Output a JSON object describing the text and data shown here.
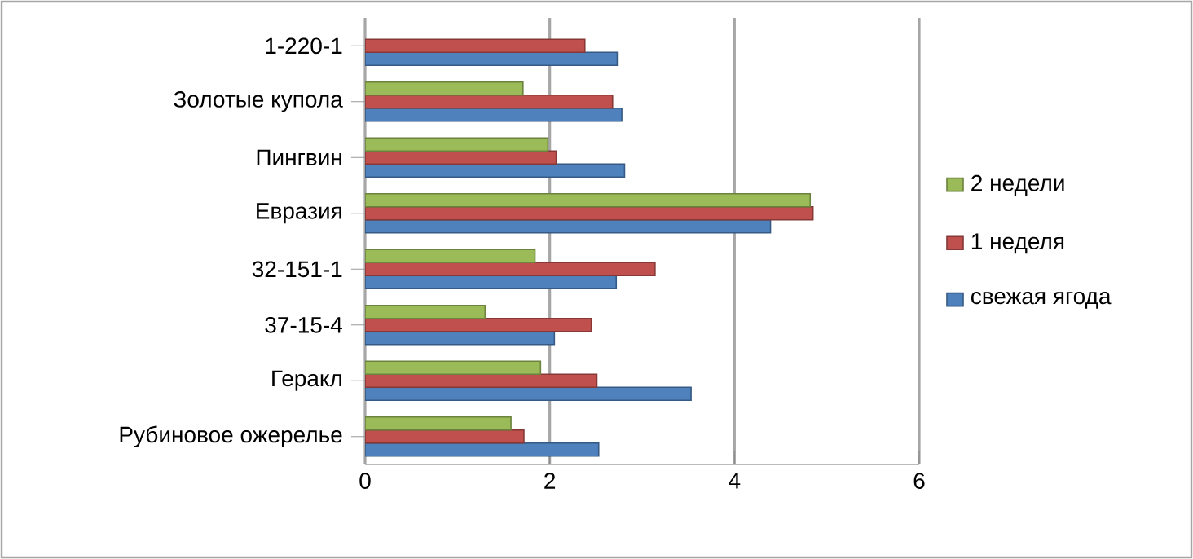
{
  "chart_data": {
    "type": "bar",
    "orientation": "horizontal",
    "categories": [
      "1-220-1",
      "Золотые купола",
      "Пингвин",
      "Евразия",
      "32-151-1",
      "37-15-4",
      "Геракл",
      "Рубиновое ожерелье"
    ],
    "series": [
      {
        "name": "свежая ягода",
        "color": "#4f81bd",
        "values": [
          2.73,
          2.78,
          2.81,
          4.39,
          2.72,
          2.05,
          3.53,
          2.53
        ]
      },
      {
        "name": "1 неделя",
        "color": "#c0504d",
        "values": [
          2.38,
          2.68,
          2.07,
          4.85,
          3.14,
          2.45,
          2.51,
          1.72
        ]
      },
      {
        "name": "2 недели",
        "color": "#9bbb59",
        "values": [
          null,
          1.71,
          1.98,
          4.82,
          1.84,
          1.3,
          1.9,
          1.58
        ]
      }
    ],
    "xlim": [
      0,
      6
    ],
    "xticks": [
      0,
      2,
      4,
      6
    ],
    "grid": "x",
    "legend": "right"
  }
}
